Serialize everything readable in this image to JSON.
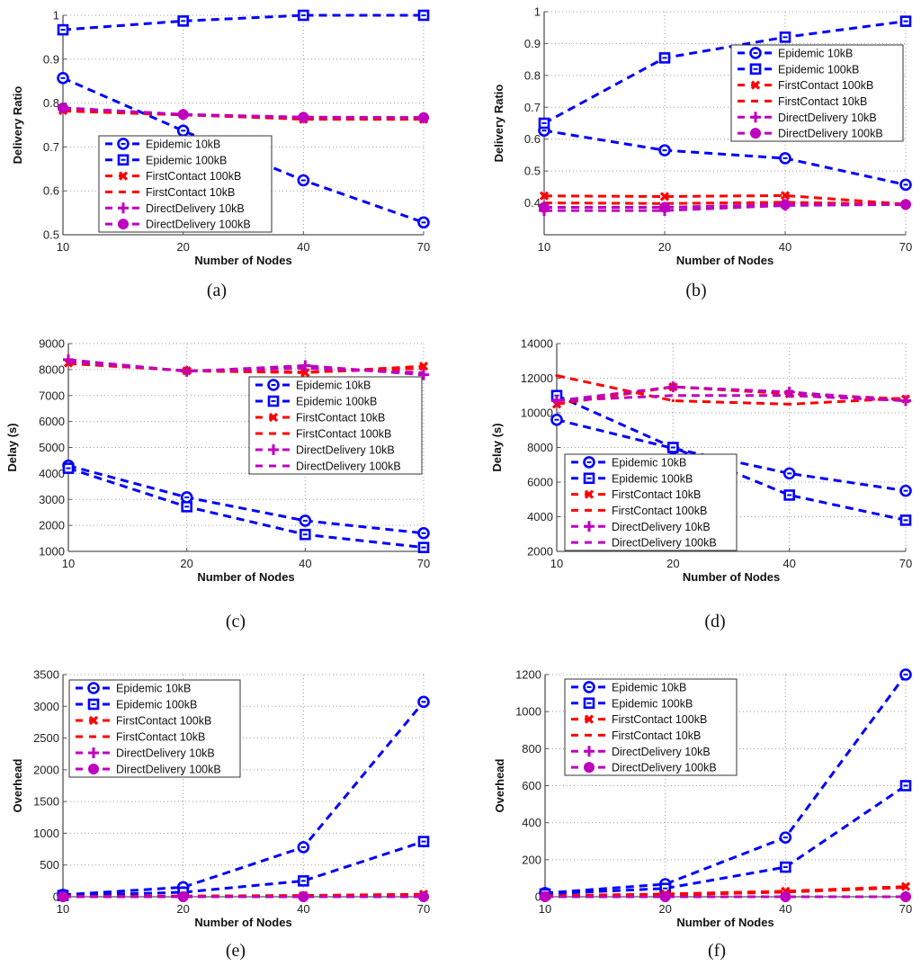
{
  "colors": {
    "epidemic": "#0000ff",
    "firstcontact": "#ff0000",
    "directdelivery": "#bf00bf",
    "axis": "#555555",
    "grid": "#999999"
  },
  "chart_data": [
    {
      "id": "a",
      "type": "line",
      "panel_label": "(a)",
      "xlabel": "Number of Nodes",
      "ylabel": "Delivery Ratio",
      "categories": [
        "10",
        "20",
        "40",
        "70"
      ],
      "ylim": [
        0.5,
        1
      ],
      "yticks": [
        0.5,
        0.6,
        0.7,
        0.8,
        0.9,
        1
      ],
      "ytick_labels": [
        "0.5",
        "0.6",
        "0.7",
        "0.8",
        "0.9",
        "1"
      ],
      "grid": true,
      "legend_position": "center-left",
      "series": [
        {
          "name": "Epidemic 10kB",
          "color": "epidemic",
          "marker": "circle",
          "values": [
            0.857,
            0.737,
            0.624,
            0.528
          ]
        },
        {
          "name": "Epidemic 100kB",
          "color": "epidemic",
          "marker": "square",
          "values": [
            0.967,
            0.987,
            1.0,
            1.0
          ]
        },
        {
          "name": "FirstContact 100kB",
          "color": "firstcontact",
          "marker": "x",
          "values": [
            0.783,
            0.774,
            0.763,
            0.763
          ]
        },
        {
          "name": "FirstContact 10kB",
          "color": "firstcontact",
          "marker": "dot",
          "values": [
            0.782,
            0.773,
            0.764,
            0.764
          ]
        },
        {
          "name": "DirectDelivery 10kB",
          "color": "directdelivery",
          "marker": "plus",
          "values": [
            0.789,
            0.774,
            0.767,
            0.767
          ]
        },
        {
          "name": "DirectDelivery 100kB",
          "color": "directdelivery",
          "marker": "filled-circle",
          "values": [
            0.789,
            0.774,
            0.768,
            0.767
          ]
        }
      ]
    },
    {
      "id": "b",
      "type": "line",
      "panel_label": "(b)",
      "xlabel": "Number of Nodes",
      "ylabel": "Delivery Ratio",
      "categories": [
        "10",
        "20",
        "40",
        "70"
      ],
      "ylim": [
        0.3,
        1
      ],
      "yticks": [
        0.4,
        0.5,
        0.6,
        0.7,
        0.8,
        0.9,
        1
      ],
      "ytick_labels": [
        "0.4",
        "0.5",
        "0.6",
        "0.7",
        "0.8",
        "0.9",
        "1"
      ],
      "grid": true,
      "legend_position": "top-right",
      "series": [
        {
          "name": "Epidemic 10kB",
          "color": "epidemic",
          "marker": "circle",
          "values": [
            0.627,
            0.565,
            0.54,
            0.457
          ]
        },
        {
          "name": "Epidemic 100kB",
          "color": "epidemic",
          "marker": "square",
          "values": [
            0.65,
            0.855,
            0.92,
            0.97
          ]
        },
        {
          "name": "FirstContact 100kB",
          "color": "firstcontact",
          "marker": "x",
          "values": [
            0.422,
            0.42,
            0.423,
            0.396
          ]
        },
        {
          "name": "FirstContact 10kB",
          "color": "firstcontact",
          "marker": "dot",
          "values": [
            0.4,
            0.398,
            0.402,
            0.395
          ]
        },
        {
          "name": "DirectDelivery 10kB",
          "color": "directdelivery",
          "marker": "plus",
          "values": [
            0.376,
            0.376,
            0.392,
            0.395
          ]
        },
        {
          "name": "DirectDelivery 100kB",
          "color": "directdelivery",
          "marker": "filled-circle",
          "values": [
            0.386,
            0.386,
            0.395,
            0.395
          ]
        }
      ]
    },
    {
      "id": "c",
      "type": "line",
      "panel_label": "(c)",
      "xlabel": "Number of Nodes",
      "ylabel": "Delay (s)",
      "categories": [
        "10",
        "20",
        "40",
        "70"
      ],
      "ylim": [
        1000,
        9000
      ],
      "yticks": [
        1000,
        2000,
        3000,
        4000,
        5000,
        6000,
        7000,
        8000,
        9000
      ],
      "ytick_labels": [
        "1000",
        "2000",
        "3000",
        "4000",
        "5000",
        "6000",
        "7000",
        "8000",
        "9000"
      ],
      "grid": true,
      "legend_position": "top-right",
      "series": [
        {
          "name": "Epidemic 10kB",
          "color": "epidemic",
          "marker": "circle",
          "values": [
            4300,
            3080,
            2180,
            1700
          ]
        },
        {
          "name": "Epidemic 100kB",
          "color": "epidemic",
          "marker": "square",
          "values": [
            4200,
            2720,
            1650,
            1150
          ]
        },
        {
          "name": "FirstContact 10kB",
          "color": "firstcontact",
          "marker": "x",
          "values": [
            8250,
            7950,
            7880,
            8130
          ]
        },
        {
          "name": "FirstContact 100kB",
          "color": "firstcontact",
          "marker": "dot",
          "values": [
            8230,
            7960,
            7900,
            8050
          ]
        },
        {
          "name": "DirectDelivery 10kB",
          "color": "directdelivery",
          "marker": "plus",
          "values": [
            8380,
            7930,
            8150,
            7800
          ]
        },
        {
          "name": "DirectDelivery 100kB",
          "color": "directdelivery",
          "marker": "none",
          "values": [
            8300,
            7950,
            8050,
            7880
          ]
        }
      ]
    },
    {
      "id": "d",
      "type": "line",
      "panel_label": "(d)",
      "xlabel": "Number of Nodes",
      "ylabel": "Delay (s)",
      "categories": [
        "10",
        "20",
        "40",
        "70"
      ],
      "ylim": [
        2000,
        14000
      ],
      "yticks": [
        2000,
        4000,
        6000,
        8000,
        10000,
        12000,
        14000
      ],
      "ytick_labels": [
        "2000",
        "4000",
        "6000",
        "8000",
        "10000",
        "12000",
        "14000"
      ],
      "grid": true,
      "legend_position": "bottom-left",
      "series": [
        {
          "name": "Epidemic 10kB",
          "color": "epidemic",
          "marker": "circle",
          "values": [
            9600,
            7950,
            6500,
            5500
          ]
        },
        {
          "name": "Epidemic 100kB",
          "color": "epidemic",
          "marker": "square",
          "values": [
            11000,
            8000,
            5250,
            3800
          ]
        },
        {
          "name": "FirstContact 10kB",
          "color": "firstcontact",
          "marker": "x",
          "values": [
            10500,
            11500,
            11100,
            10800
          ]
        },
        {
          "name": "FirstContact 100kB",
          "color": "firstcontact",
          "marker": "dot",
          "values": [
            12150,
            10700,
            10500,
            10850
          ]
        },
        {
          "name": "DirectDelivery 10kB",
          "color": "directdelivery",
          "marker": "plus",
          "values": [
            10700,
            11500,
            11200,
            10700
          ]
        },
        {
          "name": "DirectDelivery 100kB",
          "color": "directdelivery",
          "marker": "none",
          "values": [
            10700,
            11000,
            11000,
            10700
          ]
        }
      ]
    },
    {
      "id": "e",
      "type": "line",
      "panel_label": "(e)",
      "xlabel": "Number of Nodes",
      "ylabel": "Overhead",
      "categories": [
        "10",
        "20",
        "40",
        "70"
      ],
      "ylim": [
        0,
        3500
      ],
      "yticks": [
        0,
        500,
        1000,
        1500,
        2000,
        2500,
        3000,
        3500
      ],
      "ytick_labels": [
        "0",
        "500",
        "1000",
        "1500",
        "2000",
        "2500",
        "3000",
        "3500"
      ],
      "grid": true,
      "legend_position": "top-left",
      "series": [
        {
          "name": "Epidemic 10kB",
          "color": "epidemic",
          "marker": "circle",
          "values": [
            30,
            150,
            780,
            3070
          ]
        },
        {
          "name": "Epidemic 100kB",
          "color": "epidemic",
          "marker": "square",
          "values": [
            20,
            70,
            250,
            870
          ]
        },
        {
          "name": "FirstContact 100kB",
          "color": "firstcontact",
          "marker": "x",
          "values": [
            5,
            10,
            20,
            40
          ]
        },
        {
          "name": "FirstContact 10kB",
          "color": "firstcontact",
          "marker": "dot",
          "values": [
            5,
            10,
            15,
            30
          ]
        },
        {
          "name": "DirectDelivery 10kB",
          "color": "directdelivery",
          "marker": "plus",
          "values": [
            0,
            0,
            0,
            0
          ]
        },
        {
          "name": "DirectDelivery 100kB",
          "color": "directdelivery",
          "marker": "filled-circle",
          "values": [
            0,
            0,
            0,
            0
          ]
        }
      ]
    },
    {
      "id": "f",
      "type": "line",
      "panel_label": "(f)",
      "xlabel": "Number of Nodes",
      "ylabel": "Overhead",
      "categories": [
        "10",
        "20",
        "40",
        "70"
      ],
      "ylim": [
        0,
        1200
      ],
      "yticks": [
        0,
        200,
        400,
        600,
        800,
        1000,
        1200
      ],
      "ytick_labels": [
        "0",
        "200",
        "400",
        "600",
        "800",
        "1000",
        "1200"
      ],
      "grid": true,
      "legend_position": "top-left",
      "series": [
        {
          "name": "Epidemic 10kB",
          "color": "epidemic",
          "marker": "circle",
          "values": [
            20,
            68,
            320,
            1200
          ]
        },
        {
          "name": "Epidemic 100kB",
          "color": "epidemic",
          "marker": "square",
          "values": [
            15,
            45,
            160,
            600
          ]
        },
        {
          "name": "FirstContact 100kB",
          "color": "firstcontact",
          "marker": "x",
          "values": [
            5,
            15,
            30,
            55
          ]
        },
        {
          "name": "FirstContact 10kB",
          "color": "firstcontact",
          "marker": "dot",
          "values": [
            3,
            10,
            25,
            50
          ]
        },
        {
          "name": "DirectDelivery 10kB",
          "color": "directdelivery",
          "marker": "plus",
          "values": [
            0,
            0,
            0,
            0
          ]
        },
        {
          "name": "DirectDelivery 100kB",
          "color": "directdelivery",
          "marker": "filled-circle",
          "values": [
            0,
            0,
            0,
            0
          ]
        }
      ]
    }
  ]
}
